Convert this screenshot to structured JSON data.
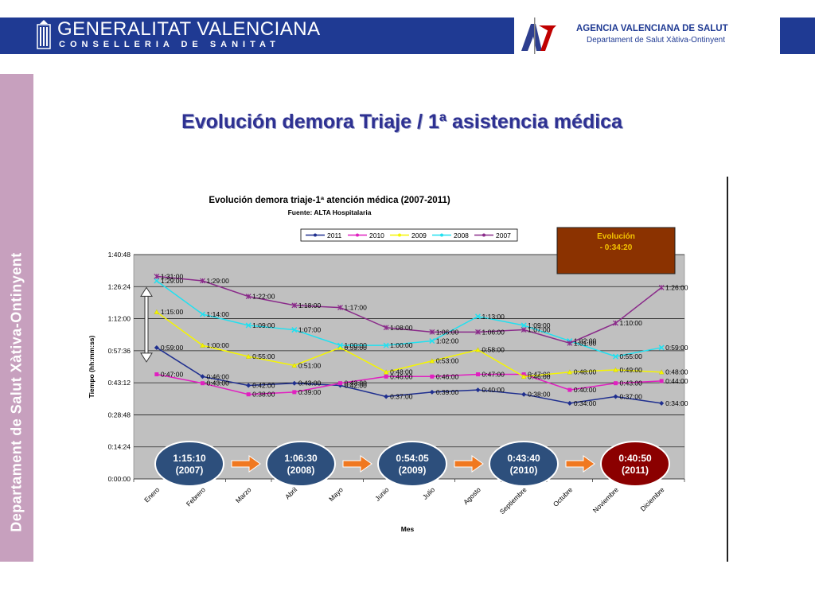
{
  "header": {
    "gv_line1": "GENERALITAT VALENCIANA",
    "gv_line2": "CONSELLERIA DE SANITAT",
    "avs_line1": "AGENCIA VALENCIANA DE SALUT",
    "avs_line2": "Departament de Salut Xàtiva-Ontinyent",
    "band_color": "#1f3a93"
  },
  "sidebar": {
    "text": "Departament de Salut Xàtiva-Ontinyent",
    "color": "#c7a0be"
  },
  "page_title": "Evolución demora Triaje / 1ª asistencia médica",
  "chart_data": {
    "type": "line",
    "title": "Evolución demora triaje-1ª atención médica (2007-2011)",
    "subtitle": "Fuente: ALTA Hospitalaria",
    "xlabel": "Mes",
    "ylabel": "Tiempo (hh:mm:ss)",
    "ylim": [
      0,
      6048
    ],
    "yticks": [
      "0:00:00",
      "0:14:24",
      "0:28:48",
      "0:43:12",
      "0:57:36",
      "1:12:00",
      "1:26:24",
      "1:40:48"
    ],
    "categories": [
      "Enero",
      "Febrero",
      "Marzo",
      "Abril",
      "Mayo",
      "Junio",
      "Julio",
      "Agosto",
      "Septiembre",
      "Octubre",
      "Noviembre",
      "Diciembre"
    ],
    "series": [
      {
        "name": "2011",
        "color": "#1f2f8f",
        "marker": "diamond",
        "labels": [
          "0:59:00",
          "0:46:00",
          "0:42:00",
          "0:43:00",
          "0:42:00",
          "0:37:00",
          "0:39:00",
          "0:40:00",
          "0:38:00",
          "0:34:00",
          "0:37:00",
          "0:34:00"
        ]
      },
      {
        "name": "2010",
        "color": "#e020c0",
        "marker": "square",
        "labels": [
          "0:47:00",
          "0:43:00",
          "0:38:00",
          "0:39:00",
          "0:43:00",
          "0:46:00",
          "0:46:00",
          "0:47:00",
          "0:47:00",
          "0:40:00",
          "0:43:00",
          "0:44:00"
        ]
      },
      {
        "name": "2009",
        "color": "#f5f500",
        "marker": "triangle",
        "labels": [
          "1:15:00",
          "1:00:00",
          "0:55:00",
          "0:51:00",
          "0:59:00",
          "0:48:00",
          "0:53:00",
          "0:58:00",
          "0:46:00",
          "0:48:00",
          "0:49:00",
          "0:48:00"
        ]
      },
      {
        "name": "2008",
        "color": "#20e0f0",
        "marker": "x",
        "labels": [
          "1:29:00",
          "1:14:00",
          "1:09:00",
          "1:07:00",
          "1:00:00",
          "1:00:00",
          "1:02:00",
          "1:13:00",
          "1:09:00",
          "1:02:00",
          "0:55:00",
          "0:59:00"
        ]
      },
      {
        "name": "2007",
        "color": "#8a2b8a",
        "marker": "star",
        "labels": [
          "1:31:00",
          "1:29:00",
          "1:22:00",
          "1:18:00",
          "1:17:00",
          "1:08:00",
          "1:06:00",
          "1:06:00",
          "1:07:00",
          "1:01:00",
          "1:10:00",
          "1:26:00"
        ]
      }
    ],
    "legend_position": "top",
    "grid": true,
    "plot_bg": "#c0c0c0",
    "annotation": {
      "line1": "Evolución",
      "line2": "- 0:34:20",
      "bg": "#8b3200",
      "color": "#f5c400"
    },
    "annual_averages": [
      {
        "value": "1:15:10",
        "year": "(2007)",
        "color": "#2d4f7c"
      },
      {
        "value": "1:06:30",
        "year": "(2008)",
        "color": "#2d4f7c"
      },
      {
        "value": "0:54:05",
        "year": "(2009)",
        "color": "#2d4f7c"
      },
      {
        "value": "0:43:40",
        "year": "(2010)",
        "color": "#2d4f7c"
      },
      {
        "value": "0:40:50",
        "year": "(2011)",
        "color": "#8b0000"
      }
    ],
    "arrow_color": "#f07820"
  }
}
